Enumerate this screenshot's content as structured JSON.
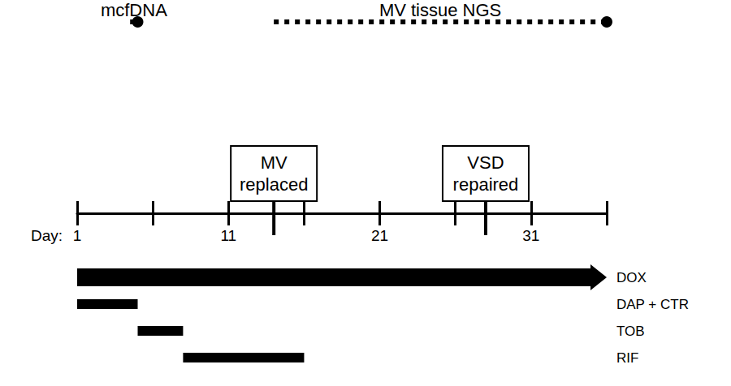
{
  "chart_data": {
    "type": "timeline",
    "x_label": "Day:",
    "xlim": [
      1,
      36
    ],
    "xticks": [
      1,
      11,
      21,
      31
    ],
    "minor_xticks": [
      6,
      16,
      26,
      36
    ],
    "color": "#000000",
    "events": [
      {
        "label": "MV replaced",
        "day": 14
      },
      {
        "label": "VSD repaired",
        "day": 28
      }
    ],
    "periods": [
      {
        "label": "mcfDNA",
        "start": 4.5,
        "end": 5,
        "line_style": "dotted"
      },
      {
        "label": "MV tissue NGS",
        "start": 14,
        "end": 36,
        "line_style": "dotted"
      }
    ],
    "series": [
      {
        "name": "DOX",
        "start": 1,
        "end": 36,
        "marker": "arrow"
      },
      {
        "name": "DAP + CTR",
        "start": 1,
        "end": 5
      },
      {
        "name": "TOB",
        "start": 5,
        "end": 8
      },
      {
        "name": "RIF",
        "start": 8,
        "end": 16
      }
    ]
  }
}
